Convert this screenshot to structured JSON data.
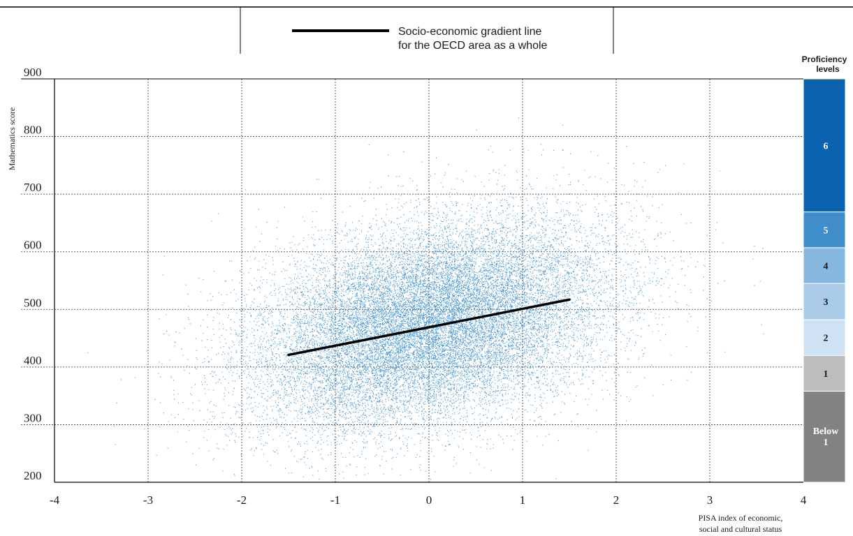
{
  "chart_data": {
    "type": "scatter",
    "title": "",
    "legend": {
      "placement": "top-center",
      "line1": "Socio-economic gradient line",
      "line2": "for the OECD area as a whole"
    },
    "xlabel_line1": "PISA index of economic,",
    "xlabel_line2": "social and cultural status",
    "ylabel": "Mathematics score",
    "xlim": [
      -4,
      4
    ],
    "ylim": [
      200,
      900
    ],
    "x_ticks": [
      "-4",
      "-3",
      "-2",
      "-1",
      "0",
      "1",
      "2",
      "3",
      "4"
    ],
    "y_ticks": [
      "200",
      "300",
      "400",
      "500",
      "600",
      "700",
      "800",
      "900"
    ],
    "grid": true,
    "point_color": "#4a98d0",
    "gradient_line": {
      "x": [
        -1.5,
        1.5
      ],
      "y": [
        421,
        517
      ],
      "color": "#000000"
    },
    "scatter_cloud": {
      "mean_x": 0.0,
      "sd_x": 0.95,
      "mean_y": 475,
      "sd_y": 85,
      "slope": 32,
      "point_count": 22000
    },
    "proficiency_header_line1": "Proficiency",
    "proficiency_header_line2": "levels",
    "proficiency_levels": [
      {
        "label": "6",
        "from": 669,
        "to": 900,
        "color": "#0b62ae",
        "text_color": "#ffffff"
      },
      {
        "label": "5",
        "from": 607,
        "to": 669,
        "color": "#3f8ec9",
        "text_color": "#ffffff"
      },
      {
        "label": "4",
        "from": 545,
        "to": 607,
        "color": "#86b7df",
        "text_color": "#1a1a1a"
      },
      {
        "label": "3",
        "from": 482,
        "to": 545,
        "color": "#a9cbe8",
        "text_color": "#1a1a1a"
      },
      {
        "label": "2",
        "from": 420,
        "to": 482,
        "color": "#cfe2f3",
        "text_color": "#1a1a1a"
      },
      {
        "label": "1",
        "from": 358,
        "to": 420,
        "color": "#bdbdbd",
        "text_color": "#1a1a1a"
      },
      {
        "label": "Below 1",
        "from": 200,
        "to": 358,
        "color": "#828282",
        "text_color": "#ffffff"
      }
    ]
  }
}
